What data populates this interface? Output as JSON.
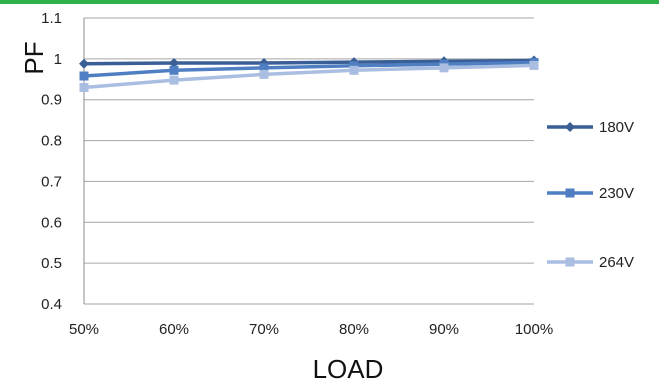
{
  "chart_data": {
    "type": "line",
    "categories": [
      "50%",
      "60%",
      "70%",
      "80%",
      "90%",
      "100%"
    ],
    "series": [
      {
        "name": "180V",
        "values": [
          0.988,
          0.99,
          0.99,
          0.992,
          0.994,
          0.996
        ],
        "color": "#3a5e96",
        "marker": "diamond"
      },
      {
        "name": "230V",
        "values": [
          0.958,
          0.972,
          0.978,
          0.983,
          0.987,
          0.991
        ],
        "color": "#4f7fc2",
        "marker": "square"
      },
      {
        "name": "264V",
        "values": [
          0.93,
          0.948,
          0.962,
          0.972,
          0.978,
          0.984
        ],
        "color": "#a9bee0",
        "marker": "square"
      }
    ],
    "yticks": [
      "0.4",
      "0.5",
      "0.6",
      "0.7",
      "0.8",
      "0.9",
      "1",
      "1.1"
    ],
    "ylim": [
      0.4,
      1.1
    ],
    "xlabel": "LOAD",
    "ylabel": "PF",
    "grid": true,
    "legend": "right"
  }
}
